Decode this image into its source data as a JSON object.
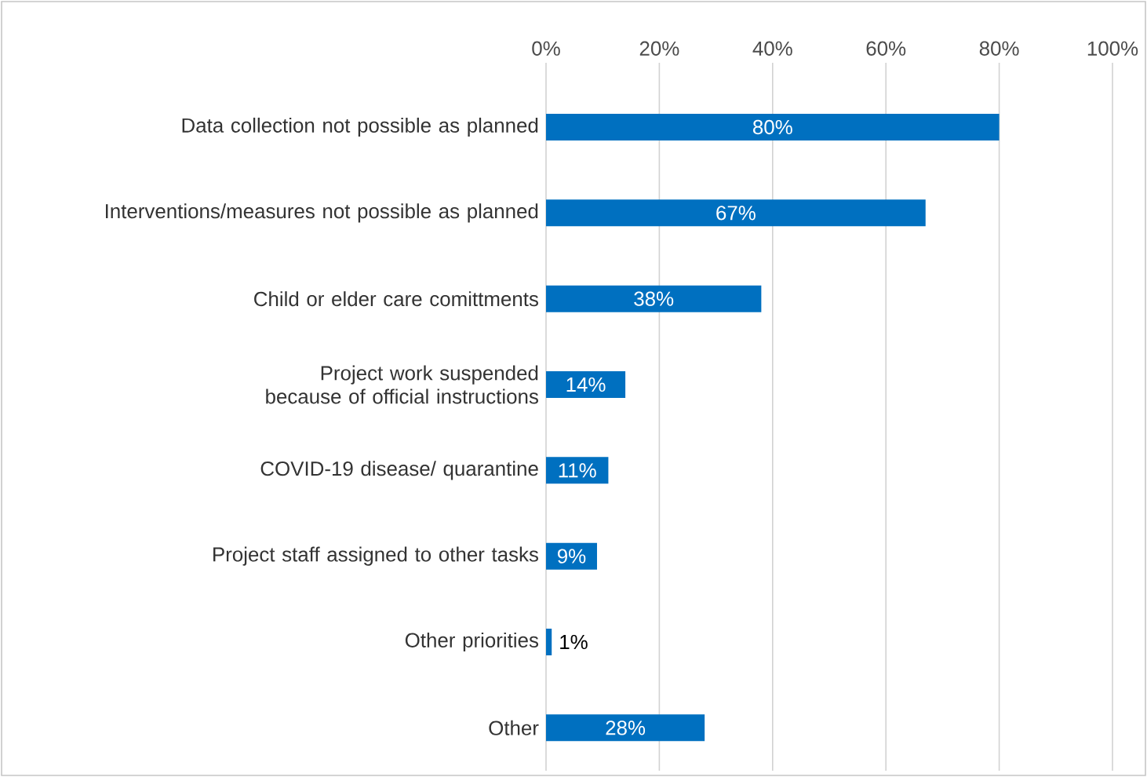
{
  "chart_data": {
    "type": "bar",
    "orientation": "horizontal",
    "categories": [
      "Data collection not possible as planned",
      "Interventions/measures not possible as planned",
      "Child or elder care comittments",
      "Project work suspended because of official instructions",
      "COVID-19 disease/ quarantine",
      "Project staff assigned to other tasks",
      "Other priorities",
      "Other"
    ],
    "values": [
      80,
      67,
      38,
      14,
      11,
      9,
      1,
      28
    ],
    "value_labels": [
      "80%",
      "67%",
      "38%",
      "14%",
      "11%",
      "9%",
      "1%",
      "28%"
    ],
    "color": "#0070c0",
    "xlim": [
      0,
      100
    ],
    "xticks": [
      {
        "value": 0,
        "label": "0%"
      },
      {
        "value": 20,
        "label": "20%"
      },
      {
        "value": 40,
        "label": "40%"
      },
      {
        "value": 60,
        "label": "60%"
      },
      {
        "value": 80,
        "label": "80%"
      },
      {
        "value": 100,
        "label": "100%"
      }
    ],
    "grid": "x"
  }
}
